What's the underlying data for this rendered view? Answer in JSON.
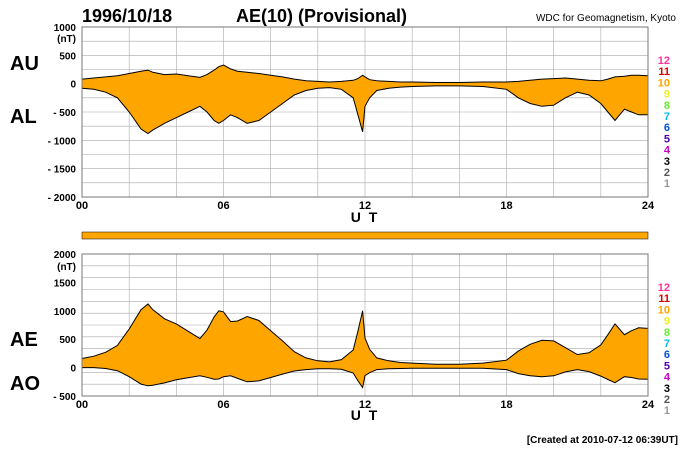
{
  "header": {
    "date": "1996/10/18",
    "title": "AE(10) (Provisional)",
    "source": "WDC for Geomagnetism, Kyoto"
  },
  "footer": {
    "created": "[Created at 2010-07-12 06:39UT]"
  },
  "colors": {
    "fill": "#ffa500",
    "outline": "#000000",
    "grid": "#aaaaaa",
    "frame": "#777777",
    "legend": [
      "#999999",
      "#555555",
      "#000000",
      "#cc00cc",
      "#5500aa",
      "#0055cc",
      "#00bbee",
      "#66ee33",
      "#eeee22",
      "#ffa500",
      "#dd0000",
      "#ff3399"
    ]
  },
  "chart_data": [
    {
      "type": "area",
      "panel": "AU/AL",
      "series_labels": [
        "AU",
        "AL"
      ],
      "unit_label": "(nT)",
      "xlabel": "U T",
      "x_ticks": [
        "00",
        "06",
        "12",
        "18",
        "24"
      ],
      "xlim": [
        0,
        24
      ],
      "ylim": [
        -2000,
        1000
      ],
      "y_ticks": [
        1000,
        500,
        0,
        -500,
        -1000,
        -1500,
        -2000
      ],
      "y_tick_labels": [
        "1000",
        "500",
        "0",
        "- 500",
        "- 1000",
        "- 1500",
        "- 2000"
      ],
      "grid": true,
      "legend_numbers": [
        "1",
        "2",
        "3",
        "4",
        "5",
        "6",
        "7",
        "8",
        "9",
        "10",
        "11",
        "12"
      ],
      "x": [
        0,
        0.5,
        1,
        1.5,
        2,
        2.5,
        2.8,
        3,
        3.5,
        4,
        4.5,
        5,
        5.3,
        5.6,
        5.8,
        6,
        6.3,
        6.6,
        7,
        7.5,
        8,
        8.5,
        9,
        9.5,
        10,
        10.5,
        11,
        11.5,
        11.7,
        11.9,
        12,
        12.2,
        12.5,
        13,
        13.5,
        14,
        15,
        16,
        17,
        18,
        18.5,
        19,
        19.5,
        20,
        20.5,
        21,
        21.5,
        22,
        22.3,
        22.6,
        23,
        23.3,
        23.6,
        24
      ],
      "series": [
        {
          "name": "AU",
          "values": [
            80,
            100,
            120,
            140,
            180,
            220,
            240,
            200,
            160,
            170,
            140,
            110,
            160,
            240,
            300,
            330,
            260,
            220,
            200,
            180,
            150,
            120,
            80,
            50,
            40,
            30,
            40,
            60,
            90,
            150,
            120,
            70,
            50,
            40,
            30,
            30,
            20,
            20,
            30,
            30,
            40,
            60,
            80,
            90,
            100,
            80,
            60,
            50,
            80,
            120,
            130,
            150,
            150,
            140
          ]
        },
        {
          "name": "AL",
          "values": [
            -80,
            -100,
            -150,
            -250,
            -500,
            -800,
            -880,
            -820,
            -700,
            -600,
            -500,
            -400,
            -500,
            -650,
            -700,
            -650,
            -550,
            -600,
            -700,
            -650,
            -500,
            -350,
            -200,
            -120,
            -80,
            -70,
            -100,
            -250,
            -550,
            -850,
            -400,
            -250,
            -120,
            -80,
            -60,
            -50,
            -40,
            -40,
            -50,
            -100,
            -250,
            -350,
            -400,
            -380,
            -250,
            -150,
            -200,
            -350,
            -500,
            -650,
            -450,
            -500,
            -550,
            -550
          ]
        }
      ]
    },
    {
      "type": "area",
      "panel": "AE/AO",
      "series_labels": [
        "AE",
        "AO"
      ],
      "unit_label": "(nT)",
      "xlabel": "U T",
      "x_ticks": [
        "00",
        "06",
        "12",
        "18",
        "24"
      ],
      "xlim": [
        0,
        24
      ],
      "ylim": [
        -500,
        2000
      ],
      "y_ticks": [
        2000,
        1500,
        1000,
        500,
        0,
        -500
      ],
      "y_tick_labels": [
        "2000",
        "1500",
        "1000",
        "500",
        "0",
        "- 500"
      ],
      "grid": true,
      "legend_numbers": [
        "1",
        "2",
        "3",
        "4",
        "5",
        "6",
        "7",
        "8",
        "9",
        "10",
        "11",
        "12"
      ],
      "x": [
        0,
        0.5,
        1,
        1.5,
        2,
        2.5,
        2.8,
        3,
        3.5,
        4,
        4.5,
        5,
        5.3,
        5.6,
        5.8,
        6,
        6.3,
        6.6,
        7,
        7.5,
        8,
        8.5,
        9,
        9.5,
        10,
        10.5,
        11,
        11.5,
        11.7,
        11.9,
        12,
        12.2,
        12.5,
        13,
        13.5,
        14,
        15,
        16,
        17,
        18,
        18.5,
        19,
        19.5,
        20,
        20.5,
        21,
        21.5,
        22,
        22.3,
        22.6,
        23,
        23.3,
        23.6,
        24
      ],
      "series": [
        {
          "name": "AE",
          "values": [
            160,
            200,
            270,
            390,
            680,
            1020,
            1120,
            1020,
            860,
            770,
            640,
            510,
            660,
            890,
            1000,
            980,
            810,
            820,
            900,
            830,
            650,
            470,
            280,
            170,
            120,
            100,
            140,
            310,
            640,
            1000,
            520,
            320,
            170,
            120,
            90,
            80,
            60,
            60,
            80,
            130,
            290,
            410,
            480,
            470,
            350,
            230,
            260,
            400,
            580,
            770,
            580,
            650,
            700,
            690
          ]
        },
        {
          "name": "AO",
          "values": [
            0,
            0,
            -15,
            -55,
            -160,
            -290,
            -320,
            -310,
            -270,
            -215,
            -180,
            -145,
            -170,
            -205,
            -200,
            -160,
            -145,
            -190,
            -250,
            -235,
            -175,
            -115,
            -60,
            -35,
            -20,
            -20,
            -30,
            -95,
            -230,
            -350,
            -140,
            -90,
            -35,
            -20,
            -15,
            -10,
            -10,
            -10,
            -10,
            -35,
            -105,
            -145,
            -160,
            -145,
            -75,
            -35,
            -70,
            -150,
            -210,
            -265,
            -160,
            -175,
            -200,
            -205
          ]
        }
      ]
    }
  ]
}
